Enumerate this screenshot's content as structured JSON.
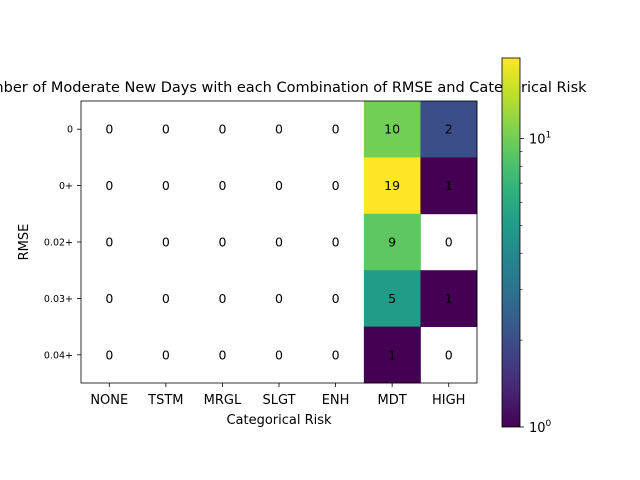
{
  "chart_data": {
    "type": "heatmap",
    "title": "Number of Moderate New Days with each Combination of RMSE and Categorical Risk",
    "xlabel": "Categorical Risk",
    "ylabel": "RMSE",
    "x_categories": [
      "NONE",
      "TSTM",
      "MRGL",
      "SLGT",
      "ENH",
      "MDT",
      "HIGH"
    ],
    "y_categories": [
      "0",
      "0+",
      "0.02+",
      "0.03+",
      "0.04+"
    ],
    "values": [
      [
        0,
        0,
        0,
        0,
        0,
        10,
        2
      ],
      [
        0,
        0,
        0,
        0,
        0,
        19,
        1
      ],
      [
        0,
        0,
        0,
        0,
        0,
        9,
        0
      ],
      [
        0,
        0,
        0,
        0,
        0,
        5,
        1
      ],
      [
        0,
        0,
        0,
        0,
        0,
        1,
        0
      ]
    ],
    "colorbar": {
      "scale": "log",
      "range": [
        1,
        19
      ],
      "colormap": "viridis",
      "tick_labels": [
        "10^0",
        "10^1"
      ]
    }
  }
}
